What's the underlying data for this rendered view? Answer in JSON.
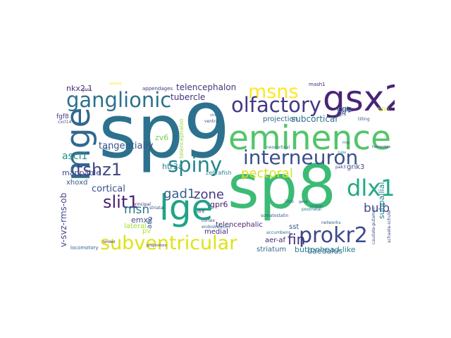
{
  "wordcloud": {
    "words": [
      {
        "text": "sp9",
        "color": "#2c728e"
      },
      {
        "text": "sp8",
        "color": "#3bbb75"
      },
      {
        "text": "eminence",
        "color": "#52c569"
      },
      {
        "text": "gsx2",
        "color": "#482475"
      },
      {
        "text": "mge",
        "color": "#31688e"
      },
      {
        "text": "lge",
        "color": "#20a386"
      },
      {
        "text": "ganglionic",
        "color": "#2d718e"
      },
      {
        "text": "msns",
        "color": "#fde725"
      },
      {
        "text": "olfactory",
        "color": "#443983"
      },
      {
        "text": "interneuron",
        "color": "#3b518b"
      },
      {
        "text": "subventricular",
        "color": "#dde318"
      },
      {
        "text": "spiny",
        "color": "#25858e"
      },
      {
        "text": "tshz1",
        "color": "#3f4788"
      },
      {
        "text": "prokr2",
        "color": "#3e4989"
      },
      {
        "text": "dlx1",
        "color": "#22a884"
      },
      {
        "text": "slit1",
        "color": "#481f70"
      },
      {
        "text": "gad1",
        "color": "#355f8d"
      },
      {
        "text": "zone",
        "color": "#443a83"
      },
      {
        "text": "fin",
        "color": "#46327e"
      },
      {
        "text": "pectoral",
        "color": "#d5e21a"
      },
      {
        "text": "bulb",
        "color": "#3e4c8a"
      },
      {
        "text": "msn",
        "color": "#2a768e"
      },
      {
        "text": "cortical",
        "color": "#3c4f8a"
      },
      {
        "text": "ascl1",
        "color": "#21918c"
      },
      {
        "text": "tangentially",
        "color": "#3a538b"
      },
      {
        "text": "telencephalon",
        "color": "#453781"
      },
      {
        "text": "tubercle",
        "color": "#46307e"
      },
      {
        "text": "subcortical",
        "color": "#2c728e"
      },
      {
        "text": "cge",
        "color": "#31678e"
      },
      {
        "text": "projection",
        "color": "#33638d"
      },
      {
        "text": "mappable",
        "color": "#404688"
      },
      {
        "text": "xhoxd",
        "color": "#38588c"
      },
      {
        "text": "nkx2.1",
        "color": "#472d7b"
      },
      {
        "text": "fgf8",
        "color": "#443983"
      },
      {
        "text": "zv6",
        "color": "#7ad151"
      },
      {
        "text": "htr3a",
        "color": "#287c8e"
      },
      {
        "text": "emx2",
        "color": "#3e4a89"
      },
      {
        "text": "gpr6",
        "color": "#481b6d"
      },
      {
        "text": "lateral",
        "color": "#a8db34"
      },
      {
        "text": "pv",
        "color": "#bddf26"
      },
      {
        "text": "arx",
        "color": "#355f8d"
      },
      {
        "text": "medial",
        "color": "#472c7a"
      },
      {
        "text": "telencephalic",
        "color": "#481f70"
      },
      {
        "text": "sst",
        "color": "#38588c"
      },
      {
        "text": "aer-af",
        "color": "#482071"
      },
      {
        "text": "daedalus",
        "color": "#31688e"
      },
      {
        "text": "buttonhead-like",
        "color": "#26828e"
      },
      {
        "text": "striatum",
        "color": "#2e6f8e"
      },
      {
        "text": "subpallial",
        "color": "#27808e"
      },
      {
        "text": "grik3",
        "color": "#3e4c8a"
      },
      {
        "text": "v-svz-rms-ob",
        "color": "#404588"
      },
      {
        "text": "locomotory",
        "color": "#33628d"
      },
      {
        "text": "telencephalon",
        "color": "#95d840"
      },
      {
        "text": "zebrafish",
        "color": "#23898e"
      },
      {
        "text": "appendages",
        "color": "#453882"
      },
      {
        "text": "gsx1",
        "color": "#46327e"
      },
      {
        "text": "mash1",
        "color": "#482878"
      },
      {
        "text": "fgfs",
        "color": "#3f4889"
      },
      {
        "text": "ridge",
        "color": "#443983"
      },
      {
        "text": "cxcl14",
        "color": "#39568c"
      },
      {
        "text": "striatal",
        "color": "#3d4d8a"
      },
      {
        "text": "neocortical",
        "color": "#2a788e"
      },
      {
        "text": "accumbens",
        "color": "#2d708e"
      },
      {
        "text": "networks",
        "color": "#33638d"
      },
      {
        "text": "principal",
        "color": "#482475"
      },
      {
        "text": "cortex",
        "color": "#3f4788"
      },
      {
        "text": "endoskeleton",
        "color": "#2f6c8e"
      },
      {
        "text": "somatostatin",
        "color": "#3b528b"
      },
      {
        "text": "postnatal",
        "color": "#297b8e"
      },
      {
        "text": "limb",
        "color": "#31678e"
      },
      {
        "text": "pak3",
        "color": "#453781"
      },
      {
        "text": "ventral",
        "color": "#3c4f8a"
      },
      {
        "text": "tilling",
        "color": "#3a548c"
      },
      {
        "text": "fgf10",
        "color": "#d2e21b"
      },
      {
        "text": "pk2",
        "color": "#355e8d"
      },
      {
        "text": "axons",
        "color": "#2f6b8e"
      },
      {
        "text": "plexus",
        "color": "#fde725"
      },
      {
        "text": "dr8",
        "color": "#46327e"
      },
      {
        "text": "achaete-schute",
        "color": "#3e4a89"
      },
      {
        "text": "caudate-putamen",
        "color": "#3e4a89"
      },
      {
        "text": "homeobox",
        "color": "#404688"
      },
      {
        "text": "stripes",
        "color": "#31688e"
      },
      {
        "text": "lineage",
        "color": "#2e6e8e"
      },
      {
        "text": "landed",
        "color": "#481c6e"
      },
      {
        "text": "progenitors",
        "color": "#472f7d"
      },
      {
        "text": "gene",
        "color": "#414487"
      },
      {
        "text": "tube",
        "color": "#21918c"
      },
      {
        "text": "ring",
        "color": "#3b528b"
      }
    ]
  }
}
